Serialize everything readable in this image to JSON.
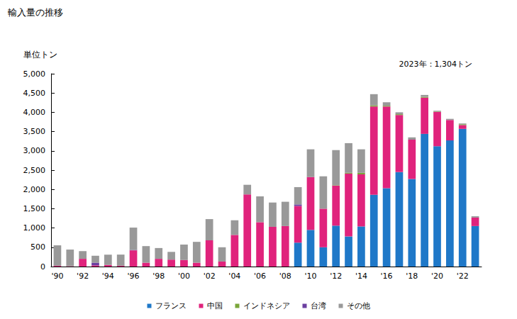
{
  "chart_data": {
    "type": "bar",
    "title": "輸入量の推移",
    "y_label": "単位トン",
    "annotation": "2023年：1,304トン",
    "stacked": true,
    "grid": false,
    "legend": "bottom",
    "categories": [
      "'90",
      null,
      "'92",
      null,
      "'94",
      null,
      "'96",
      null,
      "'98",
      null,
      "'00",
      null,
      "'02",
      null,
      "'04",
      null,
      "'06",
      null,
      "'08",
      null,
      "'10",
      null,
      "'12",
      null,
      "'14",
      null,
      "'16",
      null,
      "'18",
      null,
      "'20",
      null,
      "'22",
      null
    ],
    "ylim": [
      0,
      5000
    ],
    "yticks": [
      0,
      500,
      {
        "value": 1000,
        "label": "1,000"
      },
      {
        "value": 1500,
        "label": "1,500"
      },
      {
        "value": 2000,
        "label": "2,000"
      },
      {
        "value": 2500,
        "label": "2,500"
      },
      {
        "value": 3000,
        "label": "3,000"
      },
      {
        "value": 3500,
        "label": "3,500"
      },
      {
        "value": 4000,
        "label": "4,000"
      },
      {
        "value": 4500,
        "label": "4,500"
      },
      {
        "value": 5000,
        "label": "5,000"
      }
    ],
    "series": [
      {
        "name": "フランス",
        "color": "#1f78c8",
        "values": [
          0,
          0,
          0,
          0,
          0,
          0,
          0,
          0,
          0,
          0,
          0,
          0,
          0,
          0,
          0,
          0,
          0,
          0,
          0,
          620,
          950,
          500,
          1060,
          780,
          1040,
          1860,
          2030,
          2450,
          2270,
          3440,
          3120,
          3270,
          3570,
          1050
        ]
      },
      {
        "name": "中国",
        "color": "#e0237c",
        "values": [
          20,
          10,
          200,
          30,
          40,
          20,
          420,
          100,
          200,
          180,
          170,
          100,
          680,
          130,
          820,
          1870,
          1150,
          1030,
          1050,
          950,
          1370,
          1000,
          1040,
          1630,
          1350,
          2290,
          2120,
          1480,
          1020,
          940,
          890,
          530,
          100,
          220
        ]
      },
      {
        "name": "インドネシア",
        "color": "#7aa63a",
        "values": [
          0,
          0,
          0,
          0,
          0,
          0,
          0,
          0,
          0,
          0,
          0,
          0,
          0,
          0,
          0,
          0,
          0,
          0,
          0,
          0,
          0,
          0,
          10,
          20,
          40,
          30,
          20,
          20,
          0,
          20,
          10,
          0,
          20,
          0
        ]
      },
      {
        "name": "台湾",
        "color": "#6b3fa0",
        "values": [
          0,
          0,
          0,
          70,
          0,
          0,
          10,
          0,
          0,
          0,
          0,
          0,
          0,
          0,
          0,
          0,
          0,
          0,
          0,
          40,
          0,
          0,
          0,
          0,
          0,
          0,
          0,
          0,
          0,
          0,
          0,
          0,
          0,
          0
        ]
      },
      {
        "name": "その他",
        "color": "#999999",
        "values": [
          530,
          430,
          200,
          180,
          270,
          290,
          580,
          430,
          280,
          200,
          400,
          540,
          550,
          370,
          380,
          250,
          670,
          630,
          630,
          450,
          720,
          840,
          910,
          770,
          610,
          290,
          90,
          50,
          60,
          50,
          20,
          30,
          20,
          34
        ]
      }
    ]
  }
}
